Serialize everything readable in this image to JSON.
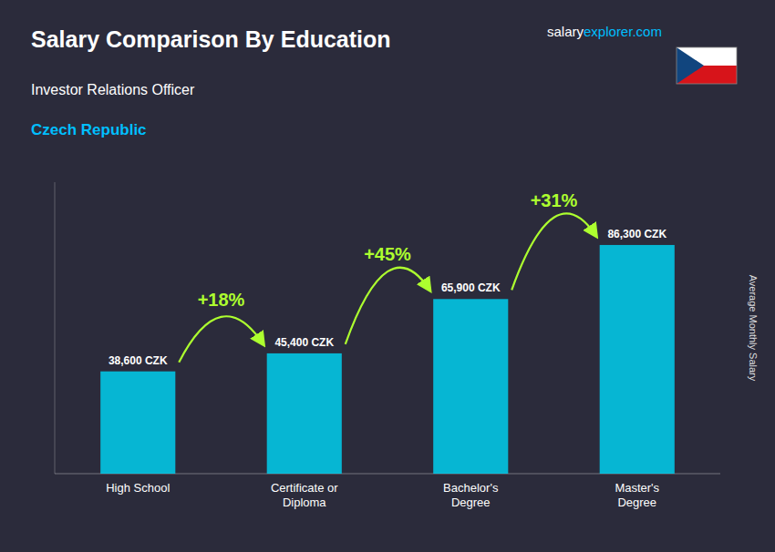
{
  "chart_data": {
    "type": "bar",
    "title": "Salary Comparison By Education",
    "subtitle": "Investor Relations Officer",
    "country": "Czech Republic",
    "ylabel": "Average Monthly Salary",
    "watermark": [
      "salary",
      "explorer.com"
    ],
    "categories": [
      "High School",
      "Certificate or\nDiploma",
      "Bachelor's\nDegree",
      "Master's\nDegree"
    ],
    "values": [
      38600,
      45400,
      65900,
      86300
    ],
    "value_labels": [
      "38,600 CZK",
      "45,400 CZK",
      "65,900 CZK",
      "86,300 CZK"
    ],
    "data_labels": true,
    "annotations": [
      "+18%",
      "+45%",
      "+31%"
    ],
    "color": "#00CFEF",
    "ylim": [
      0,
      110000
    ],
    "tick_labels": "x",
    "grid": false
  }
}
